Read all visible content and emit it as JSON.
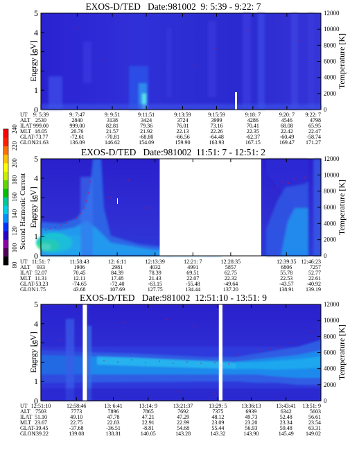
{
  "colorbar": {
    "label": "Second Harmonic Current",
    "ticks": [
      "80",
      "100",
      "120",
      "140",
      "160",
      "180",
      "200",
      "220",
      "240"
    ],
    "colors": [
      "#000000",
      "#50005a",
      "#8c00aa",
      "#2800c8",
      "#0030ff",
      "#0090ff",
      "#00d0e6",
      "#00c896",
      "#00c000",
      "#60d800",
      "#c8f000",
      "#ffff00",
      "#ffc000",
      "#ff7000",
      "#ff1e00",
      "#ff0000"
    ]
  },
  "chart_data": [
    {
      "type": "heatmap",
      "title": "EXOS-D/TED   Date:981002  9: 5:39 - 9:22: 7",
      "ylabel": "Energy [eV]",
      "y2label": "Temperature [K]",
      "ylim": [
        0,
        5
      ],
      "yticks": [
        "0",
        "1",
        "2",
        "3",
        "4",
        "5"
      ],
      "y2lim": [
        0,
        12000
      ],
      "y2ticks": [
        "0",
        "2000",
        "4000",
        "6000",
        "8000",
        "10000",
        "12000"
      ],
      "gaps": [],
      "table": {
        "labels": [
          "UT",
          "ALT",
          "ILAT",
          "MLT",
          "GLAT",
          "GLON"
        ],
        "columns": [
          [
            "9: 5:39",
            "2530",
            "999.00",
            "18.05",
            "-73.77",
            "121.63"
          ],
          [
            "9: 7:47",
            "2840",
            "999.00",
            "20.76",
            "-72.61",
            "136.09"
          ],
          [
            "9: 9:51",
            "3138",
            "82.81",
            "21.57",
            "-70.81",
            "146.62"
          ],
          [
            "9:11:51",
            "3424",
            "79.36",
            "21.92",
            "-68.80",
            "154.09"
          ],
          [
            "9:13:59",
            "3724",
            "76.01",
            "22.13",
            "-66.56",
            "159.90"
          ],
          [
            "9:15:59",
            "3999",
            "73.16",
            "22.26",
            "-64.48",
            "163.93"
          ],
          [
            "9:18: 7",
            "4286",
            "70.41",
            "22.35",
            "-62.37",
            "167.15"
          ],
          [
            "9:20: 7",
            "4546",
            "68.08",
            "22.42",
            "-60.49",
            "169.47"
          ],
          [
            "9:22: 7",
            "4798",
            "65.95",
            "22.47",
            "-58.74",
            "171.27"
          ]
        ]
      }
    },
    {
      "type": "heatmap",
      "title": "EXOS-D/TED   Date:981002  11:51: 7 - 12:51: 2",
      "ylabel": "Energy [eV]",
      "y2label": "Temperature [K]",
      "ylim": [
        0,
        5
      ],
      "yticks": [
        "0",
        "1",
        "2",
        "3",
        "4",
        "5"
      ],
      "y2lim": [
        0,
        12000
      ],
      "y2ticks": [
        "0",
        "2000",
        "4000",
        "6000",
        "8000",
        "10000",
        "12000"
      ],
      "gaps": [
        [
          12.2428,
          12.5767
        ],
        [
          12.8039,
          12.8186
        ]
      ],
      "table": {
        "labels": [
          "UT",
          "ALT",
          "ILAT",
          "MLT",
          "GLAT",
          "GLON"
        ],
        "columns": [
          [
            "11:51: 7",
            "933",
            "52.07",
            "11.31",
            "-53.23",
            "1.75"
          ],
          [
            "11:58:43",
            "1906",
            "70.45",
            "12.11",
            "-74.65",
            "43.68"
          ],
          [
            "12: 6:11",
            "2981",
            "84.39",
            "17.48",
            "-72.40",
            "107.69"
          ],
          [
            "12:13:39",
            "4032",
            "78.39",
            "21.43",
            "-63.15",
            "127.75"
          ],
          [
            "12:21: 7",
            "4991",
            "69.51",
            "22.07",
            "-55.48",
            "134.44"
          ],
          [
            "12:28:35",
            "5857",
            "62.75",
            "22.32",
            "-49.64",
            "137.20"
          ],
          [
            "12:39:35",
            "6806",
            "55.78",
            "22.53",
            "-43.57",
            "138.91"
          ],
          [
            "12:46:23",
            "7257",
            "52.77",
            "22.61",
            "-40.92",
            "139.19"
          ]
        ]
      }
    },
    {
      "type": "heatmap",
      "title": "EXOS-D/TED   Date:981002  12:51:10 - 13:51: 9",
      "ylabel": "Energy [eV]",
      "y2label": "Temperature [K]",
      "ylim": [
        0,
        5
      ],
      "yticks": [
        "0",
        "1",
        "2",
        "3",
        "4",
        "5"
      ],
      "y2lim": [
        0,
        12000
      ],
      "y2ticks": [
        "0",
        "2000",
        "4000",
        "6000",
        "8000",
        "10000",
        "12000"
      ],
      "gaps": [
        [
          13.0022,
          13.0172
        ],
        [
          13.4881,
          13.5011
        ]
      ],
      "table": {
        "labels": [
          "UT",
          "ALT",
          "ILAT",
          "MLT",
          "GLAT",
          "GLON"
        ],
        "columns": [
          [
            "12:51:10",
            "7503",
            "51.10",
            "23.67",
            "-39.45",
            "139.22"
          ],
          [
            "12:58:46",
            "7773",
            "49.10",
            "22.75",
            "-37.68",
            "139.08"
          ],
          [
            "13: 6:41",
            "7896",
            "47.78",
            "22.83",
            "-36.51",
            "138.81"
          ],
          [
            "13:14: 9",
            "7865",
            "47.21",
            "22.91",
            "-8.81",
            "140.05"
          ],
          [
            "13:21:37",
            "7692",
            "47.29",
            "22.99",
            "54.68",
            "143.28"
          ],
          [
            "13:29: 5",
            "7375",
            "48.12",
            "23.09",
            "55.44",
            "143.32"
          ],
          [
            "13:36:13",
            "6939",
            "49.73",
            "23.20",
            "56.93",
            "143.90"
          ],
          [
            "13:43:41",
            "6342",
            "52.48",
            "23.34",
            "59.48",
            "145.49"
          ],
          [
            "13:51: 9",
            "5603",
            "56.61",
            "23.54",
            "63.31",
            "149.02"
          ]
        ]
      }
    }
  ]
}
